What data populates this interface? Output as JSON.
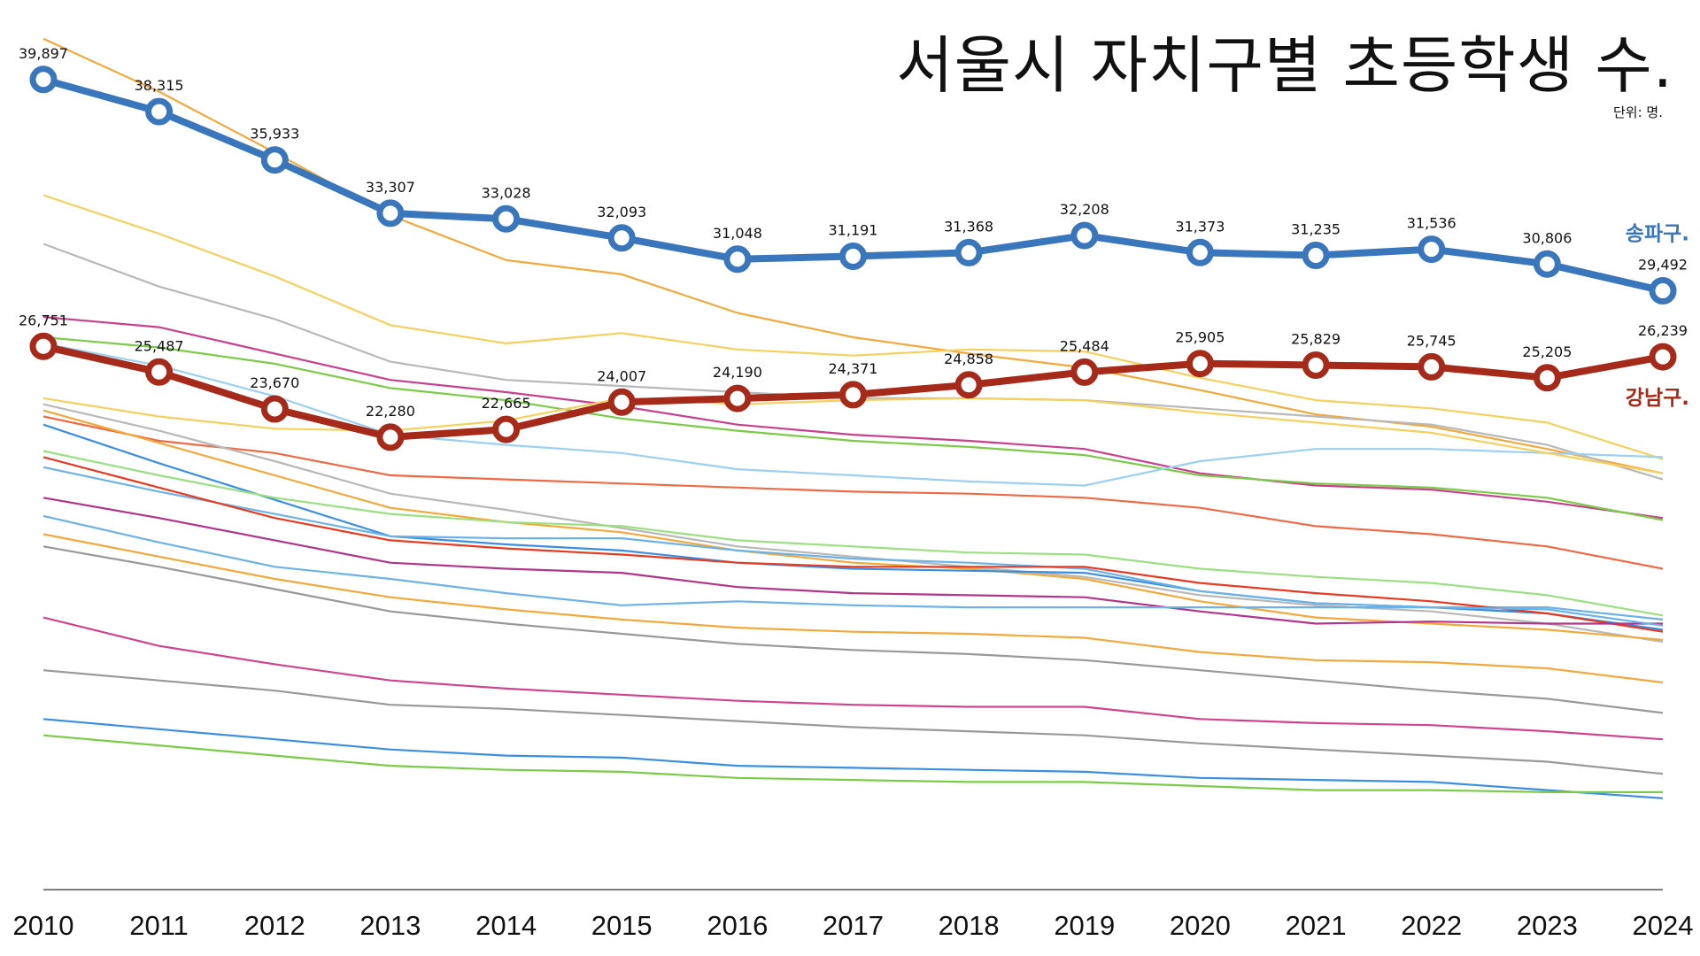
{
  "chart_data": {
    "type": "line",
    "title": "서울시 자치구별 초등학생 수.",
    "unit_note": "단위: 명.",
    "xlabel": "",
    "ylabel": "",
    "ylim": [
      0,
      41000
    ],
    "grid": false,
    "x": [
      "2010",
      "2011",
      "2012",
      "2013",
      "2014",
      "2015",
      "2016",
      "2017",
      "2018",
      "2019",
      "2020",
      "2021",
      "2022",
      "2023",
      "2024"
    ],
    "highlighted_series": [
      {
        "name": "송파구.",
        "color": "#3A76BB",
        "values": [
          39897,
          38315,
          35933,
          33307,
          33028,
          32093,
          31048,
          31191,
          31368,
          32208,
          31373,
          31235,
          31536,
          30806,
          29492
        ],
        "labels": [
          "39,897",
          "38,315",
          "35,933",
          "33,307",
          "33,028",
          "32,093",
          "31,048",
          "31,191",
          "31,368",
          "32,208",
          "31,373",
          "31,235",
          "31,536",
          "30,806",
          "29,492"
        ]
      },
      {
        "name": "강남구.",
        "color": "#A52A1A",
        "values": [
          26751,
          25487,
          23670,
          22280,
          22665,
          24007,
          24190,
          24371,
          24858,
          25484,
          25905,
          25829,
          25745,
          25205,
          26239
        ],
        "labels": [
          "26,751",
          "25,487",
          "23,670",
          "22,280",
          "22,665",
          "24,007",
          "24,190",
          "24,371",
          "24,858",
          "25,484",
          "25,905",
          "25,829",
          "25,745",
          "25,205",
          "26,239"
        ]
      }
    ],
    "background_series": [
      {
        "color": "#F2A93B",
        "values": [
          41900,
          39300,
          36300,
          33200,
          31000,
          30300,
          28400,
          27200,
          26400,
          25700,
          24600,
          23400,
          22800,
          21700,
          20500
        ]
      },
      {
        "color": "#F5D05E",
        "values": [
          34200,
          32300,
          30200,
          27800,
          26900,
          27400,
          26600,
          26300,
          26600,
          26500,
          25200,
          24100,
          23700,
          23000,
          21200
        ]
      },
      {
        "color": "#B8B8B8",
        "values": [
          31800,
          29700,
          28100,
          26000,
          25100,
          24800,
          24500,
          24200,
          24200,
          24100,
          23700,
          23300,
          22900,
          21900,
          20200
        ]
      },
      {
        "color": "#C8408E",
        "values": [
          28200,
          27700,
          26400,
          25100,
          24500,
          23800,
          22900,
          22400,
          22100,
          21700,
          20500,
          19900,
          19700,
          19100,
          18300
        ]
      },
      {
        "color": "#7ACC48",
        "values": [
          27200,
          26700,
          25900,
          24700,
          24100,
          23200,
          22600,
          22100,
          21800,
          21400,
          20400,
          20000,
          19800,
          19300,
          18200
        ]
      },
      {
        "color": "#9AD1F0",
        "values": [
          26900,
          25800,
          24300,
          22400,
          21900,
          21500,
          20700,
          20400,
          20100,
          19900,
          21100,
          21700,
          21700,
          21500,
          21300
        ]
      },
      {
        "color": "#F5D05E",
        "values": [
          24200,
          23300,
          22700,
          22600,
          23100,
          24200,
          23900,
          24100,
          24200,
          24100,
          23500,
          23000,
          22500,
          21500,
          20500
        ]
      },
      {
        "color": "#EE6A45",
        "values": [
          23300,
          22100,
          21500,
          20400,
          20200,
          20000,
          19800,
          19600,
          19500,
          19300,
          18800,
          17900,
          17500,
          16900,
          15800
        ]
      },
      {
        "color": "#B8B8B8",
        "values": [
          23900,
          22600,
          21100,
          19500,
          18700,
          17800,
          16900,
          16400,
          15900,
          15400,
          14500,
          14000,
          13700,
          13100,
          12200
        ]
      },
      {
        "color": "#F2A93B",
        "values": [
          23600,
          22000,
          20400,
          18800,
          18100,
          17600,
          16700,
          16100,
          15800,
          15300,
          14200,
          13400,
          13100,
          12800,
          12300
        ]
      },
      {
        "color": "#3A8FE0",
        "values": [
          22900,
          21000,
          19200,
          17400,
          17000,
          16700,
          16100,
          15800,
          15700,
          15600,
          14700,
          14100,
          13900,
          13600,
          12800
        ]
      },
      {
        "color": "#9AE080",
        "values": [
          21600,
          20400,
          19300,
          18500,
          18100,
          17900,
          17200,
          16900,
          16600,
          16500,
          15800,
          15400,
          15100,
          14500,
          13500
        ]
      },
      {
        "color": "#6BB3E6",
        "values": [
          20800,
          19600,
          18500,
          17400,
          17300,
          17300,
          16700,
          16300,
          16100,
          15800,
          14700,
          14100,
          13900,
          13900,
          13300
        ]
      },
      {
        "color": "#E63A22",
        "values": [
          21300,
          19800,
          18300,
          17200,
          16800,
          16500,
          16100,
          15900,
          15900,
          15900,
          15100,
          14600,
          14200,
          13600,
          12700
        ]
      },
      {
        "color": "#B0368A",
        "values": [
          19300,
          18300,
          17200,
          16100,
          15800,
          15600,
          14900,
          14600,
          14500,
          14400,
          13700,
          13100,
          13200,
          13100,
          13100
        ]
      },
      {
        "color": "#6BB3E6",
        "values": [
          18400,
          17100,
          15900,
          15300,
          14600,
          14000,
          14200,
          14000,
          13900,
          13900,
          13900,
          13900,
          13900,
          13800,
          13000
        ]
      },
      {
        "color": "#F2A93B",
        "values": [
          17500,
          16400,
          15300,
          14400,
          13800,
          13300,
          12900,
          12700,
          12600,
          12400,
          11700,
          11300,
          11200,
          10900,
          10200
        ]
      },
      {
        "color": "#999999",
        "values": [
          16900,
          15900,
          14800,
          13700,
          13100,
          12600,
          12100,
          11800,
          11600,
          11300,
          10800,
          10300,
          9800,
          9400,
          8700
        ]
      },
      {
        "color": "#D0438E",
        "values": [
          13400,
          12000,
          11100,
          10300,
          9900,
          9600,
          9300,
          9100,
          9000,
          9000,
          8400,
          8200,
          8100,
          7800,
          7400
        ]
      },
      {
        "color": "#999999",
        "values": [
          10800,
          10300,
          9800,
          9100,
          8900,
          8600,
          8300,
          8000,
          7800,
          7600,
          7200,
          6900,
          6600,
          6300,
          5700
        ]
      },
      {
        "color": "#3A8FE0",
        "values": [
          8400,
          7900,
          7400,
          6900,
          6600,
          6500,
          6100,
          6000,
          5900,
          5800,
          5500,
          5400,
          5300,
          4900,
          4500
        ]
      },
      {
        "color": "#7ACC48",
        "values": [
          7600,
          7100,
          6600,
          6100,
          5900,
          5800,
          5500,
          5400,
          5300,
          5300,
          5100,
          4900,
          4900,
          4800,
          4800
        ]
      }
    ]
  }
}
